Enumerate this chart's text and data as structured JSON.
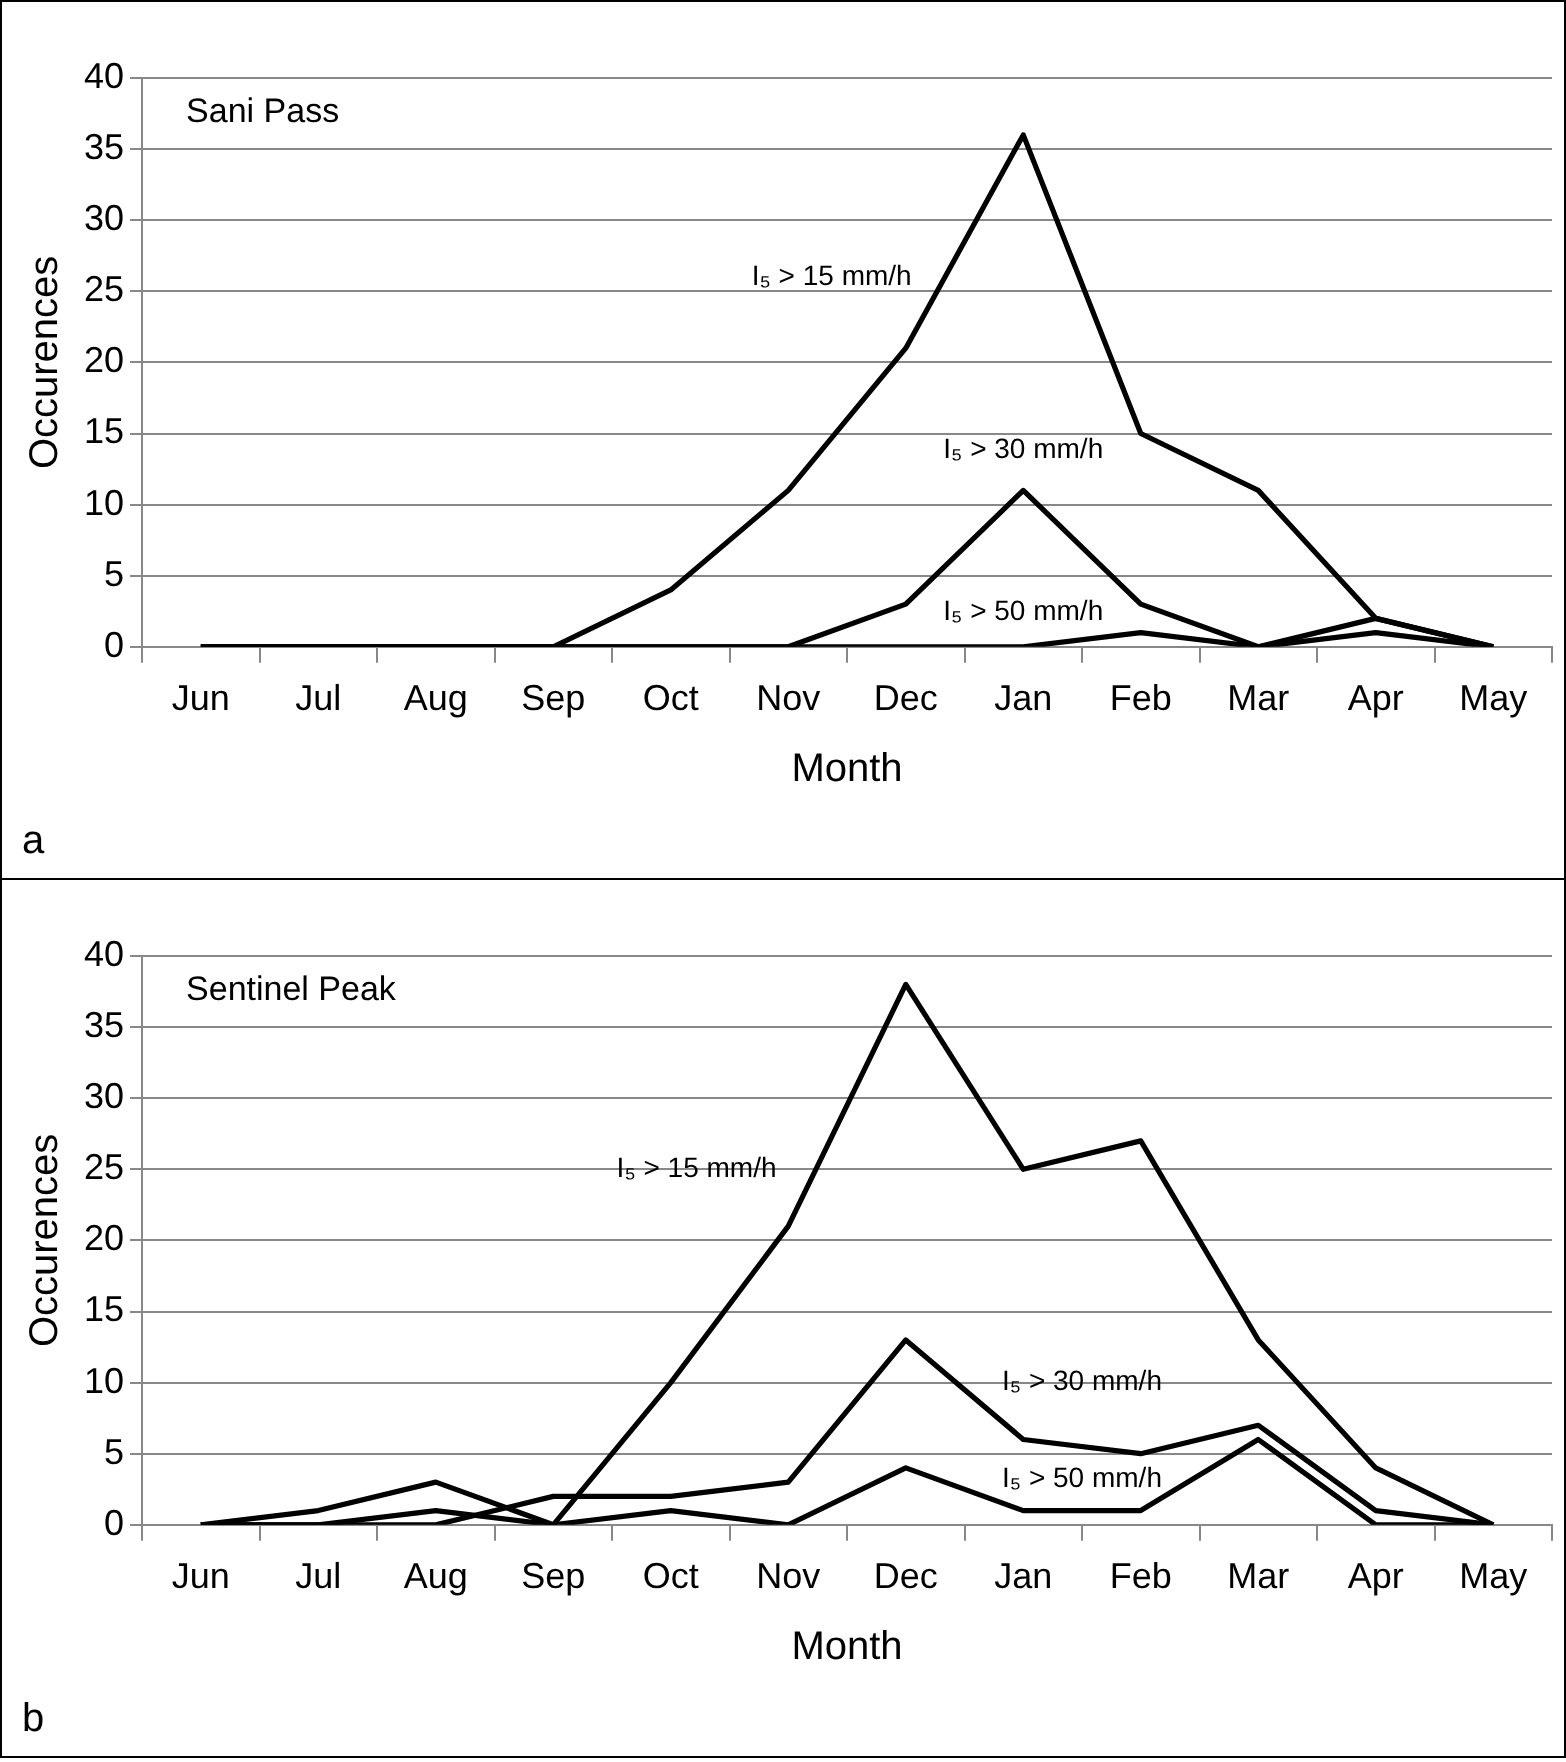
{
  "chart_data": [
    {
      "type": "line",
      "title": "Sani Pass",
      "xlabel": "Month",
      "ylabel": "Occurences",
      "categories": [
        "Jun",
        "Jul",
        "Aug",
        "Sep",
        "Oct",
        "Nov",
        "Dec",
        "Jan",
        "Feb",
        "Mar",
        "Apr",
        "May"
      ],
      "series": [
        {
          "name": "I₅ > 15 mm/h",
          "color": "#000000",
          "values": [
            0,
            0,
            0,
            0,
            4,
            11,
            21,
            36,
            15,
            11,
            2,
            0
          ]
        },
        {
          "name": "I₅ > 30 mm/h",
          "color": "#000000",
          "values": [
            0,
            0,
            0,
            0,
            0,
            0,
            3,
            11,
            3,
            0,
            2,
            0
          ]
        },
        {
          "name": "I₅ > 50 mm/h",
          "color": "#000000",
          "values": [
            0,
            0,
            0,
            0,
            0,
            0,
            0,
            0,
            1,
            0,
            1,
            0
          ]
        }
      ],
      "ylim": [
        0,
        40
      ],
      "yticks": [
        0,
        5,
        10,
        15,
        20,
        25,
        30,
        35,
        40
      ],
      "grid": "y",
      "legend": false,
      "marker": "none",
      "line_style": "solid",
      "annotations": [
        "a"
      ]
    },
    {
      "type": "line",
      "title": "Sentinel Peak",
      "xlabel": "Month",
      "ylabel": "Occurences",
      "categories": [
        "Jun",
        "Jul",
        "Aug",
        "Sep",
        "Oct",
        "Nov",
        "Dec",
        "Jan",
        "Feb",
        "Mar",
        "Apr",
        "May"
      ],
      "series": [
        {
          "name": "I₅ > 15 mm/h",
          "color": "#000000",
          "values": [
            0,
            1,
            3,
            0,
            10,
            21,
            38,
            25,
            27,
            13,
            4,
            0
          ]
        },
        {
          "name": "I₅ > 30 mm/h",
          "color": "#000000",
          "values": [
            0,
            0,
            0,
            2,
            2,
            3,
            13,
            6,
            5,
            7,
            1,
            0
          ]
        },
        {
          "name": "I₅ > 50 mm/h",
          "color": "#000000",
          "values": [
            0,
            0,
            1,
            0,
            1,
            0,
            4,
            1,
            1,
            6,
            0,
            0
          ]
        }
      ],
      "ylim": [
        0,
        40
      ],
      "yticks": [
        0,
        5,
        10,
        15,
        20,
        25,
        30,
        35,
        40
      ],
      "grid": "y",
      "legend": false,
      "marker": "none",
      "line_style": "solid",
      "annotations": [
        "b"
      ]
    }
  ]
}
